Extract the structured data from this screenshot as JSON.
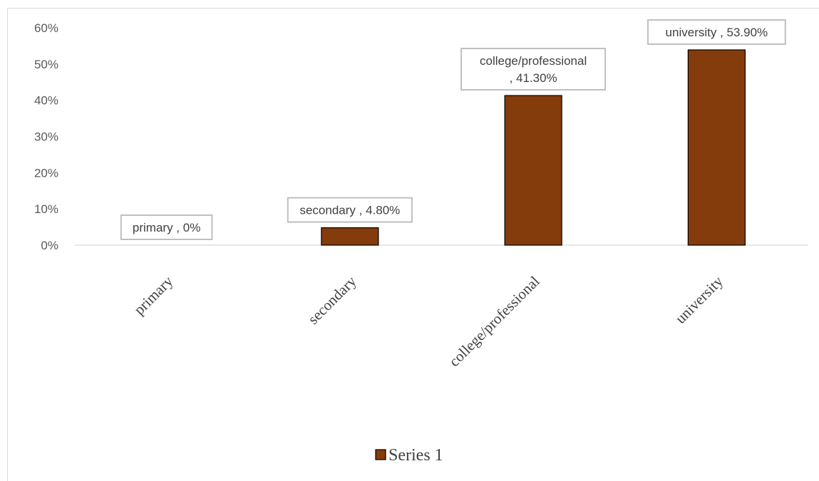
{
  "chart_data": {
    "type": "bar",
    "categories": [
      "primary",
      "secondary",
      "college/professional",
      "university"
    ],
    "series": [
      {
        "name": "Series 1",
        "values": [
          0,
          4.8,
          41.3,
          53.9
        ],
        "color": "#843c0c",
        "data_labels": [
          [
            "primary , 0%"
          ],
          [
            "secondary , 4.80%"
          ],
          [
            "college/professional",
            ", 41.30%"
          ],
          [
            "university , 53.90%"
          ]
        ]
      }
    ],
    "y_ticks": [
      "0%",
      "10%",
      "20%",
      "30%",
      "40%",
      "50%",
      "60%"
    ],
    "ylim": [
      0,
      60
    ],
    "legend": "bottom",
    "grid": false
  }
}
